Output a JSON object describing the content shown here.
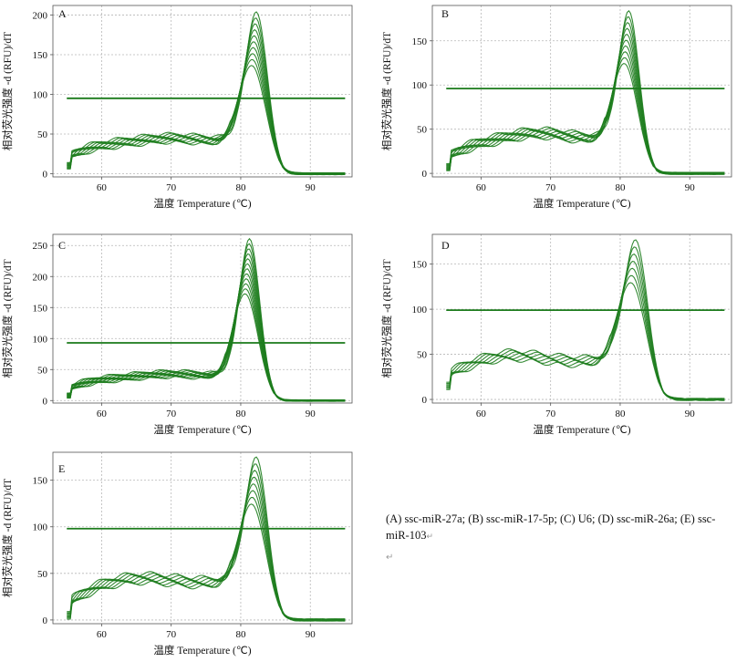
{
  "caption": {
    "text": "(A) ssc-miR-27a; (B) ssc-miR-17-5p; (C) U6; (D) ssc-miR-26a; (E) ssc-miR-103",
    "mark": "↵",
    "trailing_mark": "↵"
  },
  "colors": {
    "curve": "#1e7d1e",
    "threshold": "#1a7a1a",
    "grid": "#b8b8b8",
    "axis": "#555555"
  },
  "chart_data": [
    {
      "type": "line",
      "panel_label": "A",
      "xlabel": "温度 Temperature (℃)",
      "ylabel": "相对荧光强度 -d (RFU)/dT",
      "xlim": [
        53,
        96
      ],
      "ylim": [
        -4,
        212
      ],
      "xticks": [
        60,
        70,
        80,
        90
      ],
      "yticks": [
        0,
        50,
        100,
        150,
        200
      ],
      "threshold": 95,
      "grid": true,
      "curves": {
        "count": 10,
        "base_start": 20,
        "base_mid": 40,
        "peak_x": 82,
        "peak_min": 137,
        "peak_max": 205,
        "width": 1.7,
        "hump_x": 70,
        "hump_amp": 5
      }
    },
    {
      "type": "line",
      "panel_label": "B",
      "xlabel": "温度 Temperature (℃)",
      "ylabel": "相对荧光强度 -d (RFU)/dT",
      "xlim": [
        53,
        96
      ],
      "ylim": [
        -4,
        190
      ],
      "xticks": [
        60,
        70,
        80,
        90
      ],
      "yticks": [
        0,
        50,
        100,
        150
      ],
      "threshold": 96,
      "grid": true,
      "curves": {
        "count": 10,
        "base_start": 17,
        "base_mid": 38,
        "peak_x": 81,
        "peak_min": 125,
        "peak_max": 185,
        "width": 1.6,
        "hump_x": 68,
        "hump_amp": 8
      }
    },
    {
      "type": "line",
      "panel_label": "C",
      "xlabel": "温度 Temperature (℃)",
      "ylabel": "相对荧光强度 -d (RFU)/dT",
      "xlim": [
        53,
        96
      ],
      "ylim": [
        -4,
        268
      ],
      "xticks": [
        60,
        70,
        80,
        90
      ],
      "yticks": [
        0,
        50,
        100,
        150,
        200,
        250
      ],
      "threshold": 93,
      "grid": true,
      "curves": {
        "count": 12,
        "base_start": 18,
        "base_mid": 38,
        "peak_x": 81,
        "peak_min": 173,
        "peak_max": 262,
        "width": 1.6,
        "hump_x": 70,
        "hump_amp": 5
      }
    },
    {
      "type": "line",
      "panel_label": "D",
      "xlabel": "温度 Temperature (℃)",
      "ylabel": "相对荧光强度 -d (RFU)/dT",
      "xlim": [
        53,
        96
      ],
      "ylim": [
        -4,
        183
      ],
      "xticks": [
        60,
        70,
        80,
        90
      ],
      "yticks": [
        0,
        50,
        100,
        150
      ],
      "threshold": 99,
      "grid": true,
      "curves": {
        "count": 7,
        "base_start": 25,
        "base_mid": 42,
        "peak_x": 82,
        "peak_min": 130,
        "peak_max": 178,
        "width": 1.8,
        "hump_x": 64,
        "hump_amp": 8
      }
    },
    {
      "type": "line",
      "panel_label": "E",
      "xlabel": "温度 Temperature (℃)",
      "ylabel": "相对荧光强度 -d (RFU)/dT",
      "xlim": [
        53,
        96
      ],
      "ylim": [
        -4,
        180
      ],
      "xticks": [
        60,
        70,
        80,
        90
      ],
      "yticks": [
        0,
        50,
        100,
        150
      ],
      "threshold": 98,
      "grid": true,
      "curves": {
        "count": 8,
        "base_start": 15,
        "base_mid": 40,
        "peak_x": 82,
        "peak_min": 125,
        "peak_max": 176,
        "width": 1.7,
        "hump_x": 65,
        "hump_amp": 6
      }
    }
  ]
}
